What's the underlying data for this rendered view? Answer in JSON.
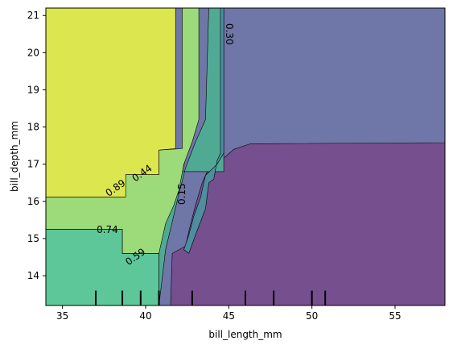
{
  "chart_data": {
    "type": "contour",
    "title": "",
    "xlabel": "bill_length_mm",
    "ylabel": "bill_depth_mm",
    "xlim": [
      34,
      58
    ],
    "ylim": [
      13.2,
      21.2
    ],
    "xticks": [
      {
        "value": 35,
        "label": "35"
      },
      {
        "value": 40,
        "label": "40"
      },
      {
        "value": 45,
        "label": "45"
      },
      {
        "value": 50,
        "label": "50"
      },
      {
        "value": 55,
        "label": "55"
      }
    ],
    "yticks": [
      {
        "value": 14,
        "label": "14"
      },
      {
        "value": 15,
        "label": "15"
      },
      {
        "value": 16,
        "label": "16"
      },
      {
        "value": 17,
        "label": "17"
      },
      {
        "value": 18,
        "label": "18"
      },
      {
        "value": 19,
        "label": "19"
      },
      {
        "value": 20,
        "label": "20"
      },
      {
        "value": 21,
        "label": "21"
      }
    ],
    "levels": [
      {
        "color": "#76508e",
        "points": [
          [
            40.6,
            17.6
          ],
          [
            58,
            17.6
          ],
          [
            58,
            13.2
          ],
          [
            40.6,
            13.2
          ]
        ]
      },
      {
        "color": "#6e77a7",
        "points": [
          [
            40.8,
            21.2
          ],
          [
            58,
            21.2
          ],
          [
            58,
            17.58
          ],
          [
            46.3,
            17.55
          ],
          [
            45.3,
            17.4
          ],
          [
            44.8,
            17.2
          ],
          [
            43.9,
            17.0
          ],
          [
            43.4,
            16.5
          ],
          [
            43.0,
            15.9
          ],
          [
            42.6,
            15.2
          ],
          [
            42.4,
            14.8
          ],
          [
            41.6,
            14.6
          ],
          [
            41.5,
            13.2
          ],
          [
            40.7,
            13.2
          ],
          [
            40.7,
            16.6
          ]
        ]
      },
      {
        "color": "#50aa93",
        "points": [
          [
            40.8,
            16.8
          ],
          [
            44.7,
            16.8
          ],
          [
            44.7,
            21.2
          ],
          [
            43.8,
            21.2
          ],
          [
            43.6,
            18.2
          ],
          [
            43.0,
            17.6
          ],
          [
            42.4,
            16.9
          ],
          [
            42.0,
            16.2
          ],
          [
            41.2,
            14.7
          ],
          [
            40.8,
            13.2
          ]
        ]
      },
      {
        "color": "#4d8fa0",
        "points": [
          [
            44.7,
            21.2
          ],
          [
            44.7,
            17.3
          ],
          [
            44.3,
            17.0
          ],
          [
            43.6,
            16.7
          ],
          [
            43.3,
            16.1
          ],
          [
            42.9,
            15.6
          ],
          [
            42.6,
            15.1
          ],
          [
            42.3,
            14.7
          ],
          [
            42.6,
            14.6
          ],
          [
            43.0,
            15.1
          ],
          [
            43.6,
            15.8
          ],
          [
            43.8,
            16.5
          ],
          [
            44.1,
            16.6
          ],
          [
            44.3,
            17.1
          ],
          [
            44.5,
            17.3
          ],
          [
            44.5,
            21.2
          ]
        ]
      },
      {
        "color": "#5dc79a",
        "points": [
          [
            34,
            15.25
          ],
          [
            38.6,
            15.25
          ],
          [
            38.6,
            14.6
          ],
          [
            40.8,
            14.6
          ],
          [
            40.8,
            16.7
          ],
          [
            40.9,
            17.3
          ],
          [
            41.8,
            17.4
          ],
          [
            42.3,
            17.4
          ],
          [
            42.3,
            21.2
          ],
          [
            43.0,
            21.2
          ],
          [
            43.1,
            18.1
          ],
          [
            42.6,
            17.5
          ],
          [
            42.2,
            16.8
          ],
          [
            41.8,
            16.2
          ],
          [
            41.2,
            15.8
          ],
          [
            40.8,
            15.0
          ],
          [
            40.8,
            13.2
          ],
          [
            34,
            13.2
          ]
        ]
      },
      {
        "color": "#9dda79",
        "points": [
          [
            34,
            16.12
          ],
          [
            38.8,
            16.12
          ],
          [
            38.8,
            16.72
          ],
          [
            40.8,
            16.72
          ],
          [
            40.8,
            17.38
          ],
          [
            42.2,
            17.42
          ],
          [
            42.2,
            21.2
          ],
          [
            43.2,
            21.2
          ],
          [
            43.2,
            18.2
          ],
          [
            42.8,
            17.6
          ],
          [
            42.3,
            17.0
          ],
          [
            42.0,
            16.3
          ],
          [
            41.7,
            15.9
          ],
          [
            41.2,
            15.4
          ],
          [
            40.8,
            14.6
          ],
          [
            38.6,
            14.6
          ],
          [
            38.6,
            15.25
          ],
          [
            34,
            15.25
          ]
        ]
      },
      {
        "color": "#dce64e",
        "points": [
          [
            34,
            21.2
          ],
          [
            41.8,
            21.2
          ],
          [
            41.8,
            17.42
          ],
          [
            40.8,
            17.38
          ],
          [
            40.8,
            16.72
          ],
          [
            38.8,
            16.72
          ],
          [
            38.8,
            16.12
          ],
          [
            34,
            16.12
          ]
        ]
      }
    ],
    "contour_labels": [
      {
        "text": "0.30",
        "x": 45.0,
        "y": 20.5,
        "angle": 90
      },
      {
        "text": "0.89",
        "x": 38.2,
        "y": 16.35,
        "angle": -35
      },
      {
        "text": "0.44",
        "x": 39.8,
        "y": 16.75,
        "angle": -35
      },
      {
        "text": "0.15",
        "x": 42.2,
        "y": 16.2,
        "angle": -90
      },
      {
        "text": "0.74",
        "x": 37.7,
        "y": 15.23,
        "angle": 0
      },
      {
        "text": "0.59",
        "x": 39.4,
        "y": 14.5,
        "angle": -35
      }
    ],
    "rug_x": [
      37.0,
      38.6,
      39.7,
      40.8,
      42.8,
      46.0,
      47.7,
      50.0,
      50.8
    ],
    "rug_height": 0.4
  }
}
